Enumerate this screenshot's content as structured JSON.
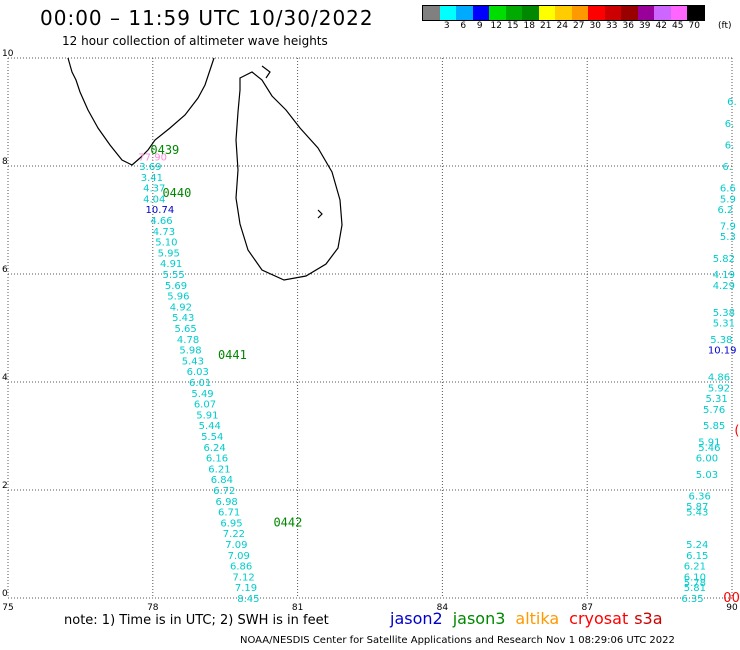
{
  "header": {
    "title": "00:00 – 11:59 UTC 10/30/2022",
    "subtitle": "12 hour collection of altimeter wave heights"
  },
  "legend": {
    "colors": [
      "#808080",
      "#00ffff",
      "#00aaff",
      "#0000ff",
      "#00dd00",
      "#00aa00",
      "#008800",
      "#ffff00",
      "#ffcc00",
      "#ff9900",
      "#ff0000",
      "#cc0000",
      "#990000",
      "#990099",
      "#cc66ff",
      "#ff66ff",
      "#000000"
    ],
    "labels": [
      "",
      "3",
      "6",
      "9",
      "12",
      "15",
      "18",
      "21",
      "24",
      "27",
      "30",
      "33",
      "36",
      "39",
      "42",
      "45",
      "70"
    ],
    "unit": "(ft)"
  },
  "axes": {
    "x_ticks": [
      "75",
      "78",
      "81",
      "84",
      "87",
      "90"
    ],
    "y_ticks": [
      "0",
      "2",
      "4",
      "6",
      "8",
      "10"
    ]
  },
  "colors": {
    "jason2": "#0000cc",
    "jason3": "#008800",
    "altika": "#ff9900",
    "cryosat": "#ff0000",
    "s3a": "#cc0000",
    "swh": "#00cccc"
  },
  "swh_points": [
    {
      "v": "77.90",
      "c": "pink",
      "lon": 77.7,
      "lat": 8.18
    },
    {
      "v": "3.69",
      "c": "cyan",
      "lon": 77.72,
      "lat": 8.0
    },
    {
      "v": "3.41",
      "c": "cyan",
      "lon": 77.75,
      "lat": 7.8
    },
    {
      "v": "4.37",
      "c": "cyan",
      "lon": 77.8,
      "lat": 7.6
    },
    {
      "v": "4.04",
      "c": "cyan",
      "lon": 77.8,
      "lat": 7.4
    },
    {
      "v": "10.74",
      "c": "blue",
      "lon": 77.85,
      "lat": 7.2
    },
    {
      "v": "4.66",
      "c": "cyan",
      "lon": 77.95,
      "lat": 7.0
    },
    {
      "v": "4.73",
      "c": "cyan",
      "lon": 78.0,
      "lat": 6.8
    },
    {
      "v": "5.10",
      "c": "cyan",
      "lon": 78.05,
      "lat": 6.6
    },
    {
      "v": "5.95",
      "c": "cyan",
      "lon": 78.1,
      "lat": 6.4
    },
    {
      "v": "4.91",
      "c": "cyan",
      "lon": 78.15,
      "lat": 6.2
    },
    {
      "v": "5.55",
      "c": "cyan",
      "lon": 78.2,
      "lat": 6.0
    },
    {
      "v": "5.69",
      "c": "cyan",
      "lon": 78.25,
      "lat": 5.8
    },
    {
      "v": "5.96",
      "c": "cyan",
      "lon": 78.3,
      "lat": 5.6
    },
    {
      "v": "4.92",
      "c": "cyan",
      "lon": 78.35,
      "lat": 5.4
    },
    {
      "v": "5.43",
      "c": "cyan",
      "lon": 78.4,
      "lat": 5.2
    },
    {
      "v": "5.65",
      "c": "cyan",
      "lon": 78.45,
      "lat": 5.0
    },
    {
      "v": "4.78",
      "c": "cyan",
      "lon": 78.5,
      "lat": 4.8
    },
    {
      "v": "5.98",
      "c": "cyan",
      "lon": 78.55,
      "lat": 4.6
    },
    {
      "v": "5.43",
      "c": "cyan",
      "lon": 78.6,
      "lat": 4.4
    },
    {
      "v": "6.03",
      "c": "cyan",
      "lon": 78.7,
      "lat": 4.2
    },
    {
      "v": "6.01",
      "c": "cyan",
      "lon": 78.75,
      "lat": 4.0
    },
    {
      "v": "5.49",
      "c": "cyan",
      "lon": 78.8,
      "lat": 3.8
    },
    {
      "v": "6.07",
      "c": "cyan",
      "lon": 78.85,
      "lat": 3.6
    },
    {
      "v": "5.91",
      "c": "cyan",
      "lon": 78.9,
      "lat": 3.4
    },
    {
      "v": "5.44",
      "c": "cyan",
      "lon": 78.95,
      "lat": 3.2
    },
    {
      "v": "5.54",
      "c": "cyan",
      "lon": 79.0,
      "lat": 3.0
    },
    {
      "v": "6.24",
      "c": "cyan",
      "lon": 79.05,
      "lat": 2.8
    },
    {
      "v": "6.16",
      "c": "cyan",
      "lon": 79.1,
      "lat": 2.6
    },
    {
      "v": "6.21",
      "c": "cyan",
      "lon": 79.15,
      "lat": 2.4
    },
    {
      "v": "6.84",
      "c": "cyan",
      "lon": 79.2,
      "lat": 2.2
    },
    {
      "v": "6.72",
      "c": "cyan",
      "lon": 79.25,
      "lat": 2.0
    },
    {
      "v": "6.98",
      "c": "cyan",
      "lon": 79.3,
      "lat": 1.8
    },
    {
      "v": "6.71",
      "c": "cyan",
      "lon": 79.35,
      "lat": 1.6
    },
    {
      "v": "6.95",
      "c": "cyan",
      "lon": 79.4,
      "lat": 1.4
    },
    {
      "v": "7.22",
      "c": "cyan",
      "lon": 79.45,
      "lat": 1.2
    },
    {
      "v": "7.09",
      "c": "cyan",
      "lon": 79.5,
      "lat": 1.0
    },
    {
      "v": "7.09",
      "c": "cyan",
      "lon": 79.55,
      "lat": 0.8
    },
    {
      "v": "6.86",
      "c": "cyan",
      "lon": 79.6,
      "lat": 0.6
    },
    {
      "v": "7.12",
      "c": "cyan",
      "lon": 79.65,
      "lat": 0.4
    },
    {
      "v": "7.19",
      "c": "cyan",
      "lon": 79.7,
      "lat": 0.2
    },
    {
      "v": "8.45",
      "c": "cyan",
      "lon": 79.75,
      "lat": 0.0
    },
    {
      "v": "6.",
      "c": "cyan",
      "lon": 89.9,
      "lat": 9.2
    },
    {
      "v": "6.",
      "c": "cyan",
      "lon": 89.85,
      "lat": 8.8
    },
    {
      "v": "6.",
      "c": "cyan",
      "lon": 89.85,
      "lat": 8.4
    },
    {
      "v": "6.",
      "c": "cyan",
      "lon": 89.8,
      "lat": 8.0
    },
    {
      "v": "6.6",
      "c": "cyan",
      "lon": 89.75,
      "lat": 7.6
    },
    {
      "v": "5.9",
      "c": "cyan",
      "lon": 89.75,
      "lat": 7.4
    },
    {
      "v": "6.2",
      "c": "cyan",
      "lon": 89.7,
      "lat": 7.2
    },
    {
      "v": "7.9",
      "c": "cyan",
      "lon": 89.75,
      "lat": 6.9
    },
    {
      "v": "5.3",
      "c": "cyan",
      "lon": 89.75,
      "lat": 6.7
    },
    {
      "v": "5.82",
      "c": "cyan",
      "lon": 89.6,
      "lat": 6.3
    },
    {
      "v": "4.19",
      "c": "cyan",
      "lon": 89.6,
      "lat": 6.0
    },
    {
      "v": "4.29",
      "c": "cyan",
      "lon": 89.6,
      "lat": 5.8
    },
    {
      "v": "5.38",
      "c": "cyan",
      "lon": 89.6,
      "lat": 5.3
    },
    {
      "v": "5.31",
      "c": "cyan",
      "lon": 89.6,
      "lat": 5.1
    },
    {
      "v": "5.38",
      "c": "cyan",
      "lon": 89.55,
      "lat": 4.8
    },
    {
      "v": "10.19",
      "c": "blue",
      "lon": 89.5,
      "lat": 4.6
    },
    {
      "v": "4.86",
      "c": "cyan",
      "lon": 89.5,
      "lat": 4.1
    },
    {
      "v": "5.92",
      "c": "cyan",
      "lon": 89.5,
      "lat": 3.9
    },
    {
      "v": "5.31",
      "c": "cyan",
      "lon": 89.45,
      "lat": 3.7
    },
    {
      "v": "5.76",
      "c": "cyan",
      "lon": 89.4,
      "lat": 3.5
    },
    {
      "v": "5.85",
      "c": "cyan",
      "lon": 89.4,
      "lat": 3.2
    },
    {
      "v": "5.91",
      "c": "cyan",
      "lon": 89.3,
      "lat": 2.9
    },
    {
      "v": "5.46",
      "c": "cyan",
      "lon": 89.3,
      "lat": 2.8
    },
    {
      "v": "6.00",
      "c": "cyan",
      "lon": 89.25,
      "lat": 2.6
    },
    {
      "v": "5.03",
      "c": "cyan",
      "lon": 89.25,
      "lat": 2.3
    },
    {
      "v": "6.36",
      "c": "cyan",
      "lon": 89.1,
      "lat": 1.9
    },
    {
      "v": "5.87",
      "c": "cyan",
      "lon": 89.05,
      "lat": 1.7
    },
    {
      "v": "5.43",
      "c": "cyan",
      "lon": 89.05,
      "lat": 1.6
    },
    {
      "v": "5.24",
      "c": "cyan",
      "lon": 89.05,
      "lat": 1.0
    },
    {
      "v": "6.15",
      "c": "cyan",
      "lon": 89.05,
      "lat": 0.8
    },
    {
      "v": "6.10",
      "c": "cyan",
      "lon": 89.0,
      "lat": 0.4
    },
    {
      "v": "5.78",
      "c": "cyan",
      "lon": 89.0,
      "lat": 0.3
    },
    {
      "v": "6.21",
      "c": "cyan",
      "lon": 89.0,
      "lat": 0.6
    },
    {
      "v": "5.81",
      "c": "cyan",
      "lon": 89.0,
      "lat": 0.2
    },
    {
      "v": "6.35",
      "c": "cyan",
      "lon": 88.95,
      "lat": 0.0
    }
  ],
  "red_markers": [
    {
      "v": "00.",
      "lon": 89.82,
      "lat": 0.0
    },
    {
      "v": "(",
      "lon": 90.05,
      "lat": 3.1
    }
  ],
  "time_labels": [
    {
      "v": "0439",
      "lon": 77.95,
      "lat": 8.3
    },
    {
      "v": "0440",
      "lon": 78.2,
      "lat": 7.5
    },
    {
      "v": "0441",
      "lon": 79.35,
      "lat": 4.5
    },
    {
      "v": "0442",
      "lon": 80.5,
      "lat": 1.4
    }
  ],
  "footer": {
    "note": "note:  1) Time is in UTC;  2) SWH is in feet",
    "satellites": [
      "jason2",
      "jason3",
      "altika",
      "cryosat",
      "s3a"
    ],
    "credit": "NOAA/NESDIS Center for Satellite Applications and Research     Nov  1 08:29:06 UTC 2022"
  }
}
